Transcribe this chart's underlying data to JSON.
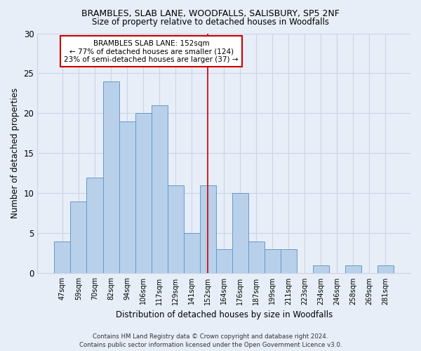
{
  "title1": "BRAMBLES, SLAB LANE, WOODFALLS, SALISBURY, SP5 2NF",
  "title2": "Size of property relative to detached houses in Woodfalls",
  "xlabel": "Distribution of detached houses by size in Woodfalls",
  "ylabel": "Number of detached properties",
  "bar_labels": [
    "47sqm",
    "59sqm",
    "70sqm",
    "82sqm",
    "94sqm",
    "106sqm",
    "117sqm",
    "129sqm",
    "141sqm",
    "152sqm",
    "164sqm",
    "176sqm",
    "187sqm",
    "199sqm",
    "211sqm",
    "223sqm",
    "234sqm",
    "246sqm",
    "258sqm",
    "269sqm",
    "281sqm"
  ],
  "bar_values": [
    4,
    9,
    12,
    24,
    19,
    20,
    21,
    11,
    5,
    11,
    3,
    10,
    4,
    3,
    3,
    0,
    1,
    0,
    1,
    0,
    1
  ],
  "bar_color": "#b8d0ea",
  "bar_edge_color": "#6699cc",
  "reference_line_index": 9,
  "annotation_title": "BRAMBLES SLAB LANE: 152sqm",
  "annotation_line1": "← 77% of detached houses are smaller (124)",
  "annotation_line2": "23% of semi-detached houses are larger (37) →",
  "annotation_box_facecolor": "#ffffff",
  "annotation_box_edgecolor": "#cc0000",
  "reference_line_color": "#cc0000",
  "ylim": [
    0,
    30
  ],
  "yticks": [
    0,
    5,
    10,
    15,
    20,
    25,
    30
  ],
  "grid_color": "#c8d4e8",
  "background_color": "#e8eef8",
  "footer1": "Contains HM Land Registry data © Crown copyright and database right 2024.",
  "footer2": "Contains public sector information licensed under the Open Government Licence v3.0."
}
